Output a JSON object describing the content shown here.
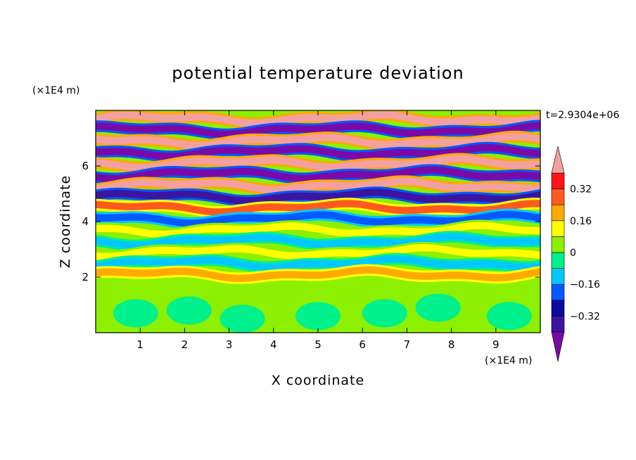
{
  "chart_data": {
    "type": "heatmap",
    "title": "potential temperature deviation",
    "xlabel": "X coordinate",
    "ylabel": "Z coordinate",
    "x_unit": "(×1E4 m)",
    "y_unit": "(×1E4 m)",
    "time_label": "t=2.9304e+06",
    "xlim": [
      0,
      10
    ],
    "ylim": [
      0,
      8
    ],
    "x_ticks": [
      1,
      2,
      3,
      4,
      5,
      6,
      7,
      8,
      9
    ],
    "y_ticks": [
      2,
      4,
      6
    ],
    "colorbar": {
      "levels": [
        -0.4,
        -0.32,
        -0.24,
        -0.16,
        -0.08,
        0,
        0.08,
        0.16,
        0.24,
        0.32,
        0.4
      ],
      "labels": [
        "0.32",
        "0.16",
        "0",
        "−0.16",
        "−0.32"
      ],
      "label_values": [
        0.32,
        0.16,
        0,
        -0.16,
        -0.32
      ],
      "colors": [
        "#7a0aa8",
        "#3c14a0",
        "#0a0aa0",
        "#005aff",
        "#00c8ff",
        "#00f08c",
        "#8cf000",
        "#ffff00",
        "#ffaa00",
        "#ff5a1e",
        "#ff1414",
        "#f5a0a0"
      ],
      "extend": "both"
    },
    "bands": [
      {
        "y": 7.7,
        "value": 0.45
      },
      {
        "y": 7.3,
        "value": -0.45
      },
      {
        "y": 6.9,
        "value": 0.45
      },
      {
        "y": 6.5,
        "value": -0.45
      },
      {
        "y": 6.1,
        "value": 0.45
      },
      {
        "y": 5.7,
        "value": -0.45
      },
      {
        "y": 5.3,
        "value": 0.45
      },
      {
        "y": 4.9,
        "value": -0.4
      },
      {
        "y": 4.5,
        "value": 0.3
      },
      {
        "y": 4.1,
        "value": -0.2
      },
      {
        "y": 3.7,
        "value": 0.15
      },
      {
        "y": 3.3,
        "value": -0.1
      },
      {
        "y": 2.9,
        "value": 0.1
      },
      {
        "y": 2.5,
        "value": -0.15
      },
      {
        "y": 2.1,
        "value": 0.2
      }
    ],
    "lower_layer": {
      "y_max": 2.0,
      "value": 0.04
    }
  },
  "colors": {
    "axis": "#000000",
    "background": "#ffffff"
  }
}
